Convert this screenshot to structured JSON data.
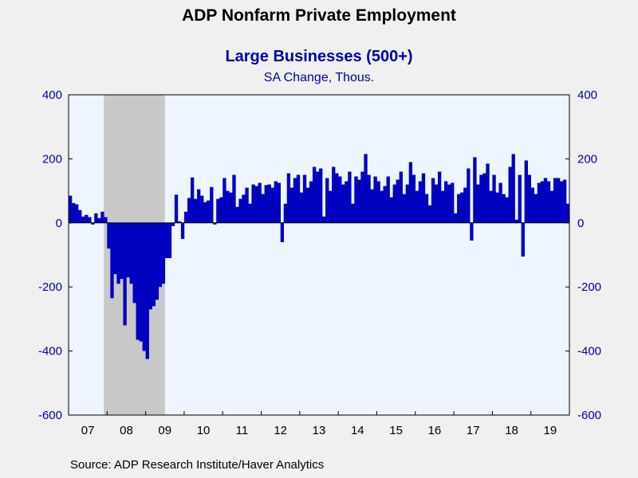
{
  "title": "ADP Nonfarm Private Employment",
  "source": "Source:  ADP Research Institute/Haver Analytics",
  "colors": {
    "bar": "#0000c0",
    "plot_bg": "#eef5fe",
    "recession": "#c8c8c8",
    "axis_text": "#0000a8"
  },
  "chart_data": {
    "type": "bar",
    "title": "Large Businesses (500+)",
    "subtitle": "SA Change, Thous.",
    "x_start": "2007-01",
    "frequency": "monthly",
    "ylim": [
      -600,
      400
    ],
    "yticks_left": [
      "400",
      "200",
      "0",
      "-200",
      "-400",
      "-600"
    ],
    "yticks_right": [
      "400",
      "200",
      "0",
      "-200",
      "-400",
      "-600"
    ],
    "xtick_labels": [
      "07",
      "08",
      "09",
      "10",
      "11",
      "12",
      "13",
      "14",
      "15",
      "16",
      "17",
      "18",
      "19"
    ],
    "recession_shading": {
      "start": "2007-12",
      "end": "2009-06"
    },
    "values": [
      85,
      62,
      58,
      40,
      20,
      25,
      18,
      -5,
      30,
      15,
      35,
      18,
      -80,
      -235,
      -160,
      -190,
      -175,
      -320,
      -170,
      -190,
      -250,
      -365,
      -370,
      -400,
      -425,
      -270,
      -260,
      -240,
      -200,
      -190,
      -110,
      -110,
      -10,
      88,
      5,
      -50,
      35,
      78,
      142,
      75,
      105,
      85,
      65,
      70,
      112,
      -5,
      75,
      80,
      140,
      100,
      95,
      150,
      50,
      75,
      88,
      110,
      60,
      120,
      115,
      125,
      90,
      118,
      120,
      110,
      130,
      125,
      -60,
      60,
      155,
      110,
      140,
      150,
      95,
      150,
      110,
      130,
      175,
      160,
      170,
      20,
      140,
      100,
      175,
      155,
      145,
      120,
      130,
      160,
      60,
      145,
      135,
      160,
      215,
      150,
      105,
      145,
      130,
      100,
      115,
      145,
      80,
      120,
      135,
      160,
      90,
      120,
      190,
      150,
      100,
      130,
      155,
      90,
      55,
      140,
      120,
      160,
      100,
      130,
      120,
      125,
      30,
      90,
      95,
      110,
      170,
      -55,
      205,
      120,
      150,
      155,
      185,
      100,
      150,
      95,
      125,
      90,
      80,
      175,
      215,
      10,
      150,
      -105,
      195,
      150,
      110,
      90,
      125,
      130,
      140,
      130,
      100,
      140,
      140,
      130,
      135,
      60
    ]
  }
}
